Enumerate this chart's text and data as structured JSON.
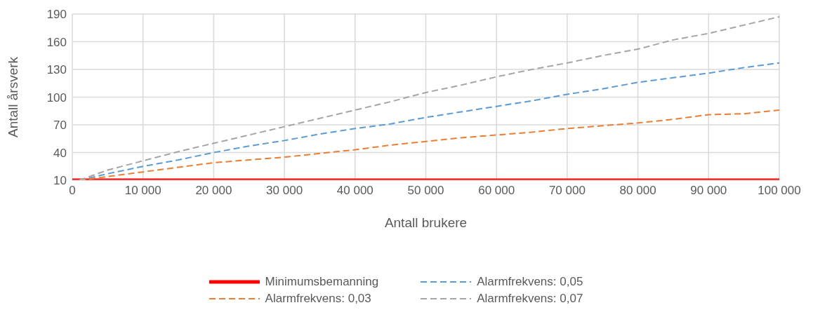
{
  "chart_data": {
    "type": "line",
    "xlabel": "Antall brukere",
    "ylabel": "Antall årsverk",
    "x": [
      0,
      1000,
      5000,
      10000,
      15000,
      20000,
      25000,
      30000,
      35000,
      40000,
      45000,
      50000,
      55000,
      60000,
      65000,
      70000,
      75000,
      80000,
      85000,
      90000,
      95000,
      100000
    ],
    "series": [
      {
        "name": "Minimumsbemanning",
        "color": "#ff0000",
        "line_style": "solid",
        "values": [
          10,
          10,
          10,
          10,
          10,
          10,
          10,
          10,
          10,
          10,
          10,
          10,
          10,
          10,
          10,
          10,
          10,
          10,
          10,
          10,
          10,
          10
        ]
      },
      {
        "name": "Alarmfrekvens: 0,05",
        "color": "#5b9bd5",
        "line_style": "dashed",
        "values": [
          null,
          10,
          17,
          25,
          32,
          40,
          47,
          53,
          60,
          66,
          71,
          78,
          84,
          90,
          96,
          103,
          109,
          116,
          121,
          126,
          132,
          137
        ]
      },
      {
        "name": "Alarmfrekvens: 0,03",
        "color": "#ed7d31",
        "line_style": "dashed",
        "values": [
          null,
          10,
          14,
          19,
          24,
          29,
          32,
          35,
          39,
          43,
          48,
          52,
          56,
          59,
          62,
          66,
          69,
          72,
          76,
          81,
          82,
          86
        ]
      },
      {
        "name": "Alarmfrekvens: 0,07",
        "color": "#a5a5a5",
        "line_style": "dashed",
        "values": [
          null,
          10,
          21,
          31,
          41,
          50,
          59,
          68,
          77,
          86,
          95,
          105,
          113,
          122,
          130,
          137,
          145,
          152,
          162,
          169,
          178,
          187
        ]
      }
    ],
    "xlim": [
      0,
      100000
    ],
    "xticks": [
      0,
      {
        "value": 10000,
        "label": "10 000"
      },
      {
        "value": 20000,
        "label": "20 000"
      },
      {
        "value": 30000,
        "label": "30 000"
      },
      {
        "value": 40000,
        "label": "40 000"
      },
      {
        "value": 50000,
        "label": "50 000"
      },
      {
        "value": 60000,
        "label": "60 000"
      },
      {
        "value": 70000,
        "label": "70 000"
      },
      {
        "value": 80000,
        "label": "80 000"
      },
      {
        "value": 90000,
        "label": "90 000"
      },
      {
        "value": 100000,
        "label": "100 000"
      }
    ],
    "ylim": [
      10,
      190
    ],
    "yticks": [
      10,
      40,
      70,
      100,
      130,
      160,
      190
    ],
    "grid": true,
    "legend": "bottom",
    "marker": "none"
  }
}
